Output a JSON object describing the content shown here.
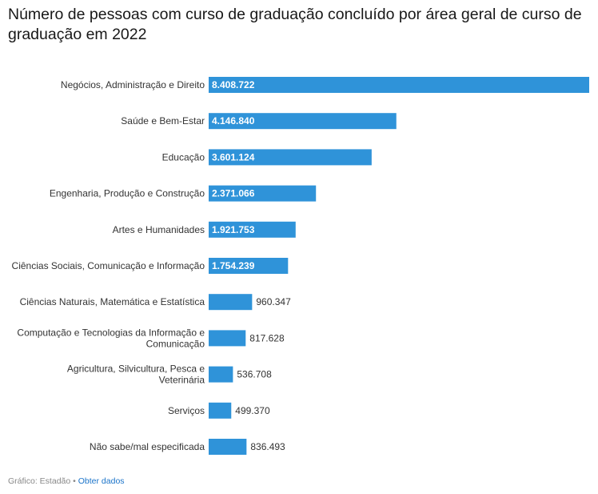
{
  "chart_data": {
    "type": "bar",
    "orientation": "horizontal",
    "title": "Número de pessoas com curso de graduação concluído por área geral de curso de graduação em 2022",
    "categories": [
      "Negócios, Administração e Direito",
      "Saúde e Bem-Estar",
      "Educação",
      "Engenharia, Produção e Construção",
      "Artes e Humanidades",
      "Ciências Sociais, Comunicação e Informação",
      "Ciências Naturais, Matemática e Estatística",
      "Computação e Tecnologias da Informação e Comunicação",
      "Agricultura, Silvicultura, Pesca e Veterinária",
      "Serviços",
      "Não sabe/mal especificada"
    ],
    "values": [
      8408722,
      4146840,
      3601124,
      2371066,
      1921753,
      1754239,
      960347,
      817628,
      536708,
      499370,
      836493
    ],
    "value_labels": [
      "8.408.722",
      "4.146.840",
      "3.601.124",
      "2.371.066",
      "1.921.753",
      "1.754.239",
      "960.347",
      "817.628",
      "536.708",
      "499.370",
      "836.493"
    ],
    "xlim": [
      0,
      8408722
    ],
    "bar_color": "#2f93d9",
    "grid": false,
    "legend": "none"
  },
  "footer": {
    "source": "Gráfico: Estadão",
    "separator": "•",
    "link_label": "Obter dados"
  }
}
